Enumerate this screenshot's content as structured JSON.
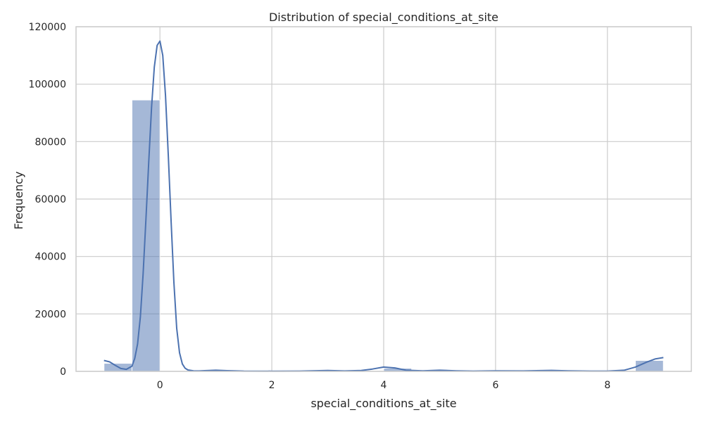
{
  "chart_data": {
    "type": "bar",
    "title": "Distribution of special_conditions_at_site",
    "xlabel": "special_conditions_at_site",
    "ylabel": "Frequency",
    "xlim": [
      -1.5,
      9.5
    ],
    "ylim": [
      0,
      120000
    ],
    "xticks": [
      0,
      2,
      4,
      6,
      8
    ],
    "yticks": [
      0,
      20000,
      40000,
      60000,
      80000,
      100000,
      120000
    ],
    "grid": true,
    "legend": "none",
    "colors": {
      "bar": "#4c72b0",
      "line": "#4c72b0",
      "grid": "#cccccc"
    },
    "bins": [
      {
        "x0": -1.0,
        "x1": -0.5,
        "value": 2800
      },
      {
        "x0": -0.5,
        "x1": 0.0,
        "value": 94500
      },
      {
        "x0": 0.0,
        "x1": 0.5,
        "value": 0
      },
      {
        "x0": 0.5,
        "x1": 1.0,
        "value": 0
      },
      {
        "x0": 1.0,
        "x1": 1.5,
        "value": 150
      },
      {
        "x0": 1.5,
        "x1": 2.0,
        "value": 0
      },
      {
        "x0": 2.0,
        "x1": 2.5,
        "value": 100
      },
      {
        "x0": 2.5,
        "x1": 3.0,
        "value": 0
      },
      {
        "x0": 3.0,
        "x1": 3.5,
        "value": 150
      },
      {
        "x0": 3.5,
        "x1": 4.0,
        "value": 0
      },
      {
        "x0": 4.0,
        "x1": 4.5,
        "value": 1100
      },
      {
        "x0": 4.5,
        "x1": 5.0,
        "value": 0
      },
      {
        "x0": 5.0,
        "x1": 5.5,
        "value": 200
      },
      {
        "x0": 5.5,
        "x1": 6.0,
        "value": 0
      },
      {
        "x0": 6.0,
        "x1": 6.5,
        "value": 150
      },
      {
        "x0": 6.5,
        "x1": 7.0,
        "value": 0
      },
      {
        "x0": 7.0,
        "x1": 7.5,
        "value": 250
      },
      {
        "x0": 7.5,
        "x1": 8.0,
        "value": 0
      },
      {
        "x0": 8.0,
        "x1": 8.5,
        "value": 0
      },
      {
        "x0": 8.5,
        "x1": 9.0,
        "value": 3800
      }
    ],
    "kde": {
      "x": [
        -1.0,
        -0.9,
        -0.8,
        -0.7,
        -0.6,
        -0.5,
        -0.45,
        -0.4,
        -0.35,
        -0.3,
        -0.25,
        -0.2,
        -0.15,
        -0.1,
        -0.05,
        0.0,
        0.05,
        0.1,
        0.15,
        0.2,
        0.25,
        0.3,
        0.35,
        0.4,
        0.45,
        0.5,
        0.6,
        0.7,
        0.8,
        1.0,
        1.2,
        1.5,
        2.0,
        2.5,
        3.0,
        3.3,
        3.6,
        3.8,
        4.0,
        4.2,
        4.4,
        4.7,
        5.0,
        5.3,
        5.6,
        6.0,
        6.5,
        7.0,
        7.3,
        7.7,
        8.0,
        8.3,
        8.5,
        8.7,
        8.85,
        9.0
      ],
      "y": [
        3800,
        3300,
        2100,
        1000,
        700,
        1800,
        4500,
        9500,
        19000,
        34000,
        53000,
        73000,
        92000,
        106000,
        113500,
        115000,
        110000,
        96000,
        75000,
        52000,
        31000,
        15000,
        6500,
        2600,
        1100,
        500,
        200,
        150,
        250,
        400,
        250,
        100,
        80,
        100,
        300,
        150,
        300,
        800,
        1500,
        1200,
        400,
        200,
        400,
        200,
        100,
        200,
        150,
        350,
        200,
        100,
        100,
        400,
        1500,
        3200,
        4300,
        4800
      ]
    }
  }
}
